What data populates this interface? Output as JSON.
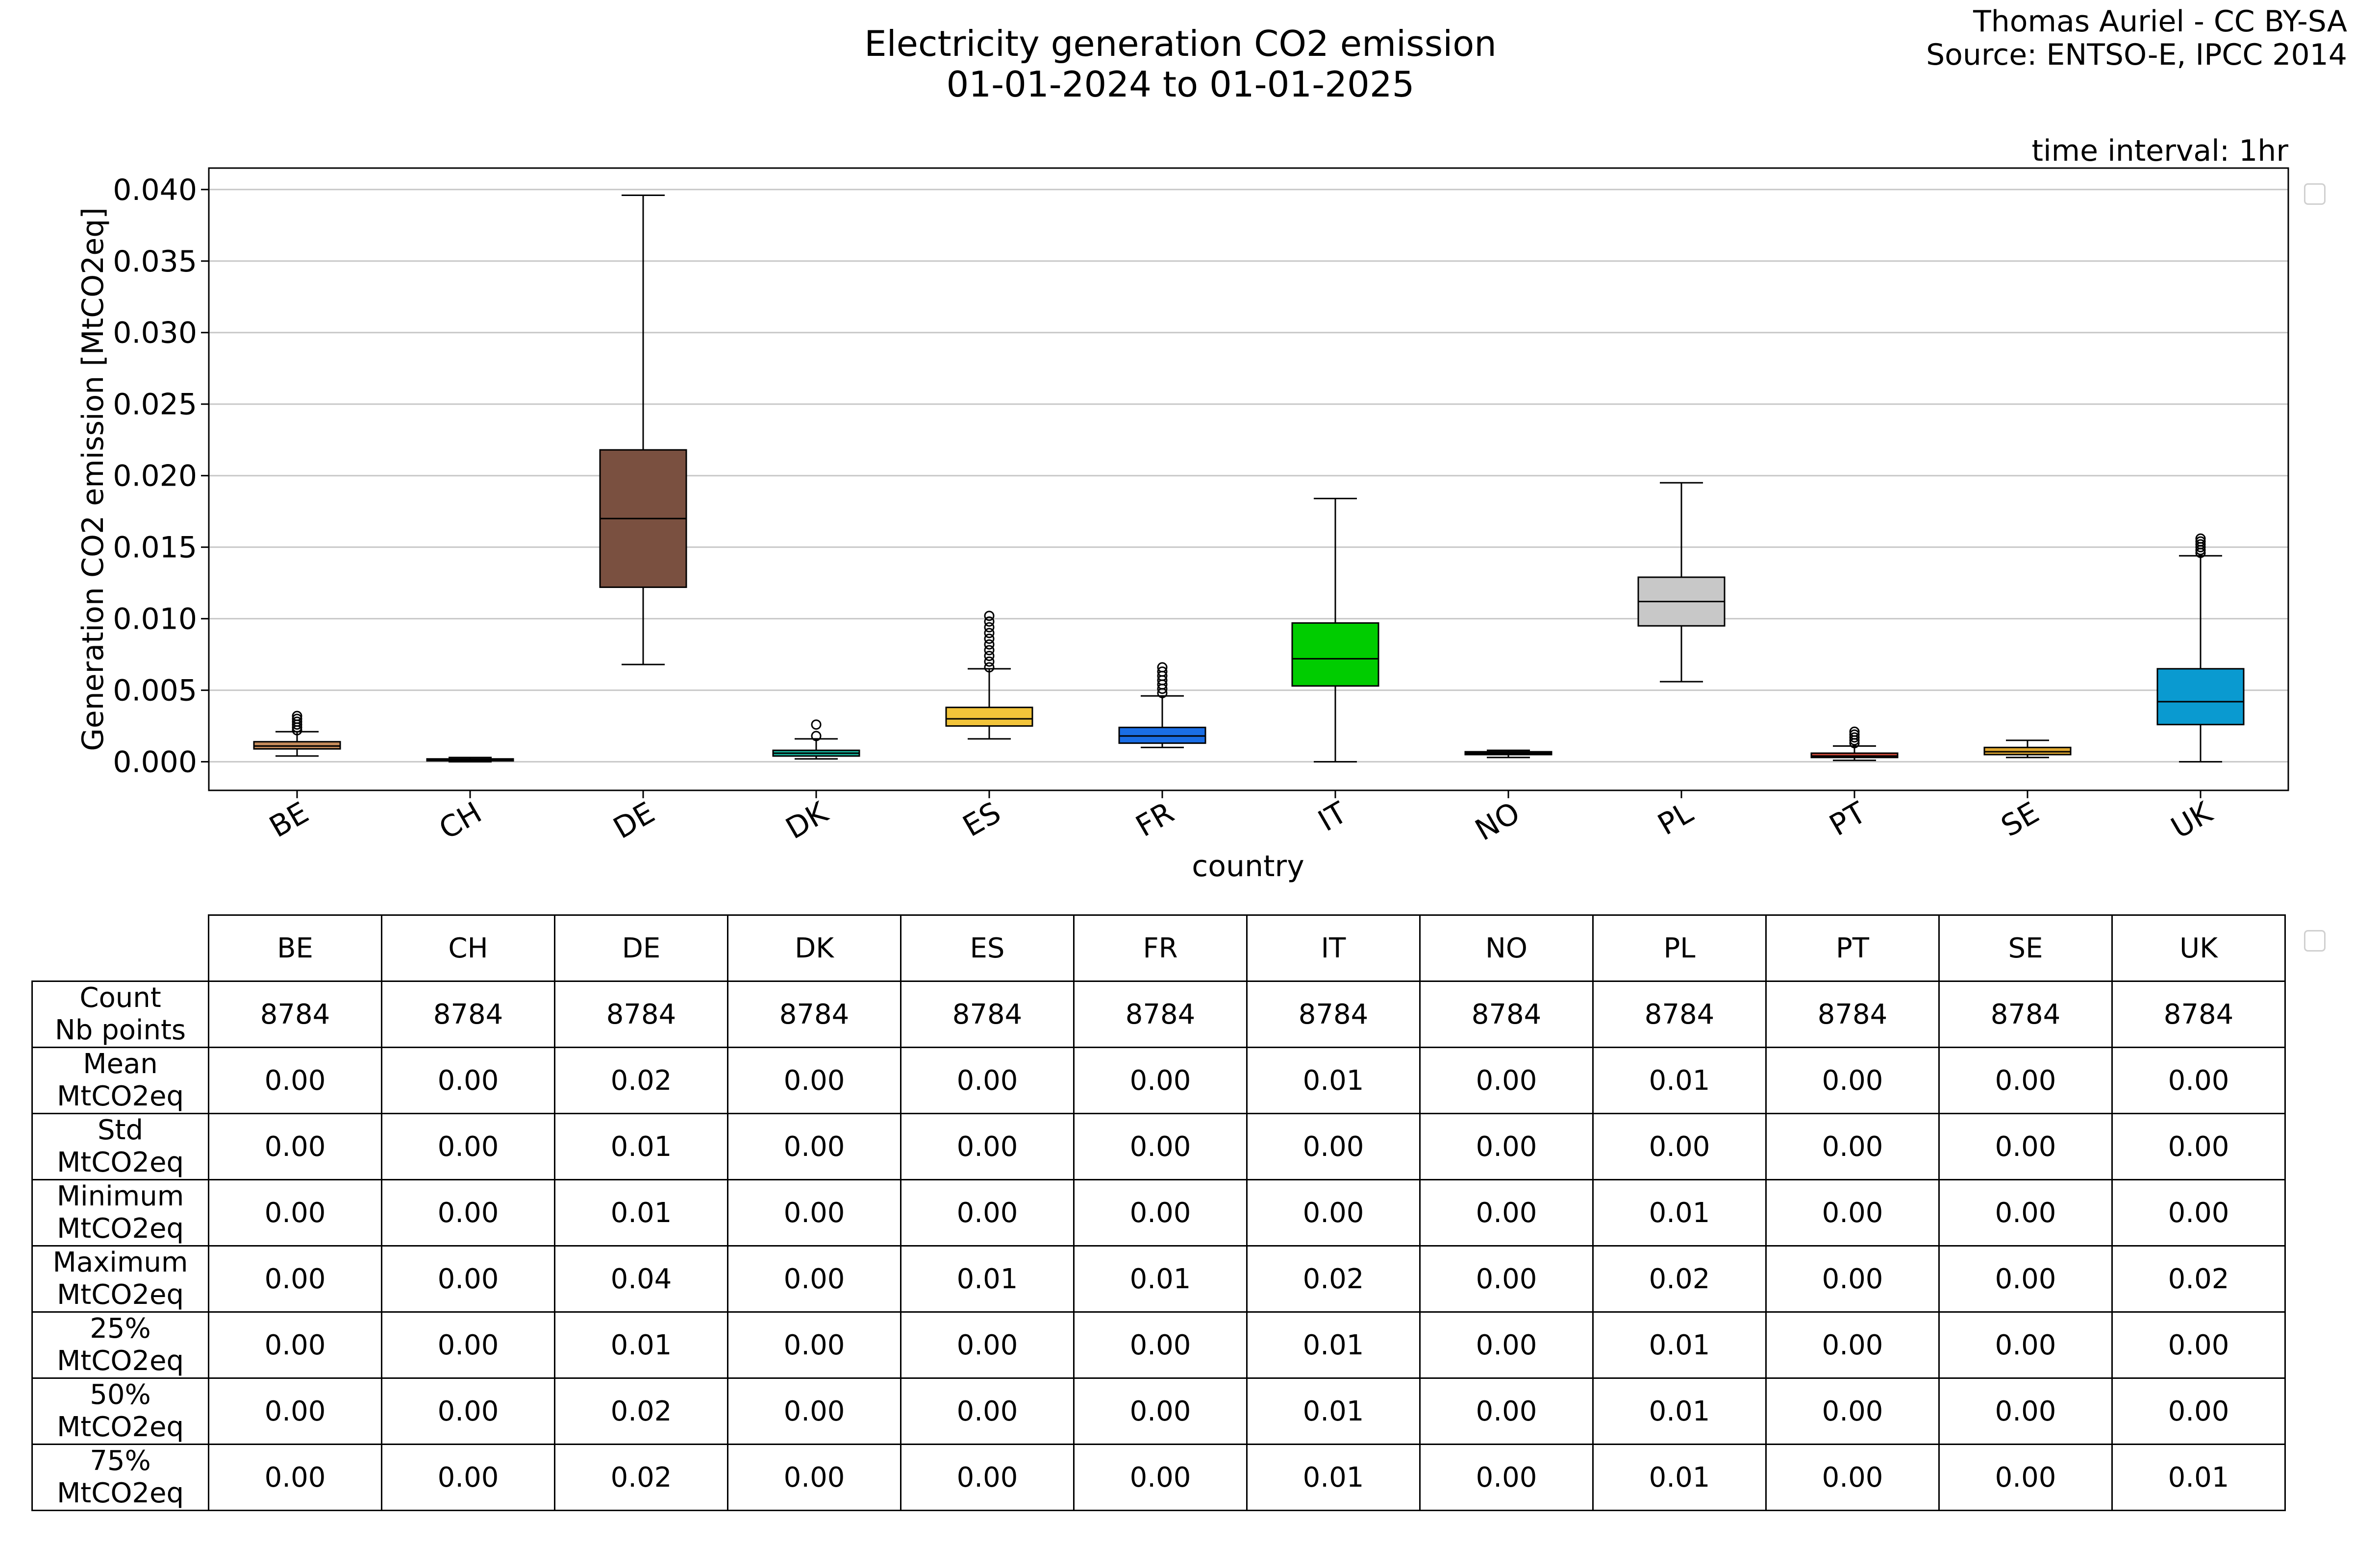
{
  "header": {
    "title_line1": "Electricity generation CO2 emission",
    "title_line2": "01-01-2024 to 01-01-2025",
    "credit_line1": "Thomas Auriel - CC BY-SA",
    "credit_line2": "Source: ENTSO-E, IPCC 2014",
    "interval": "time interval: 1hr"
  },
  "chart_data": {
    "type": "box",
    "xlabel": "country",
    "ylabel": "Generation CO2 emission [MtCO2eq]",
    "ylim": [
      -0.002,
      0.0415
    ],
    "yticks": [
      0.0,
      0.005,
      0.01,
      0.015,
      0.02,
      0.025,
      0.03,
      0.035,
      0.04
    ],
    "ytick_labels": [
      "0.000",
      "0.005",
      "0.010",
      "0.015",
      "0.020",
      "0.025",
      "0.030",
      "0.035",
      "0.040"
    ],
    "grid": "horizontal",
    "categories": [
      "BE",
      "CH",
      "DE",
      "DK",
      "ES",
      "FR",
      "IT",
      "NO",
      "PL",
      "PT",
      "SE",
      "UK"
    ],
    "boxes": [
      {
        "name": "BE",
        "color": "#c48a5a",
        "whislo": 0.0004,
        "q1": 0.0009,
        "med": 0.0011,
        "q3": 0.0014,
        "whishi": 0.0021,
        "fliers": [
          0.0022,
          0.0024,
          0.0026,
          0.0028,
          0.003,
          0.0032
        ]
      },
      {
        "name": "CH",
        "color": "#9ed8cc",
        "whislo": 0.0,
        "q1": 0.0001,
        "med": 0.00015,
        "q3": 0.0002,
        "whishi": 0.0003,
        "fliers": []
      },
      {
        "name": "DE",
        "color": "#7a5040",
        "whislo": 0.0068,
        "q1": 0.0122,
        "med": 0.017,
        "q3": 0.0218,
        "whishi": 0.0396,
        "fliers": []
      },
      {
        "name": "DK",
        "color": "#18b49c",
        "whislo": 0.0002,
        "q1": 0.0004,
        "med": 0.0006,
        "q3": 0.0008,
        "whishi": 0.0016,
        "fliers": [
          0.0018,
          0.0026
        ]
      },
      {
        "name": "ES",
        "color": "#f2c43a",
        "whislo": 0.0016,
        "q1": 0.0025,
        "med": 0.003,
        "q3": 0.0038,
        "whishi": 0.0065,
        "fliers": [
          0.0066,
          0.007,
          0.0074,
          0.0078,
          0.0082,
          0.0086,
          0.009,
          0.0094,
          0.0098,
          0.0102
        ]
      },
      {
        "name": "FR",
        "color": "#1a6ee6",
        "whislo": 0.001,
        "q1": 0.0013,
        "med": 0.0018,
        "q3": 0.0024,
        "whishi": 0.0046,
        "fliers": [
          0.0048,
          0.0051,
          0.0054,
          0.0057,
          0.006,
          0.0063,
          0.0066
        ]
      },
      {
        "name": "IT",
        "color": "#00cc00",
        "whislo": 0.0,
        "q1": 0.0053,
        "med": 0.0072,
        "q3": 0.0097,
        "whishi": 0.0184,
        "fliers": []
      },
      {
        "name": "NO",
        "color": "#555555",
        "whislo": 0.0003,
        "q1": 0.0005,
        "med": 0.0006,
        "q3": 0.0007,
        "whishi": 0.0008,
        "fliers": []
      },
      {
        "name": "PL",
        "color": "#c8c8c8",
        "whislo": 0.0056,
        "q1": 0.0095,
        "med": 0.0112,
        "q3": 0.0129,
        "whishi": 0.0195,
        "fliers": []
      },
      {
        "name": "PT",
        "color": "#d44a3a",
        "whislo": 0.0001,
        "q1": 0.0003,
        "med": 0.0004,
        "q3": 0.0006,
        "whishi": 0.0011,
        "fliers": [
          0.0013,
          0.0015,
          0.0017,
          0.0019,
          0.0021
        ]
      },
      {
        "name": "SE",
        "color": "#e0a830",
        "whislo": 0.0003,
        "q1": 0.0005,
        "med": 0.0007,
        "q3": 0.001,
        "whishi": 0.0015,
        "fliers": []
      },
      {
        "name": "UK",
        "color": "#0a9ad0",
        "whislo": 0.0,
        "q1": 0.0026,
        "med": 0.0042,
        "q3": 0.0065,
        "whishi": 0.0144,
        "fliers": [
          0.0146,
          0.0148,
          0.015,
          0.0152,
          0.0154,
          0.0156
        ]
      }
    ]
  },
  "table": {
    "columns": [
      "BE",
      "CH",
      "DE",
      "DK",
      "ES",
      "FR",
      "IT",
      "NO",
      "PL",
      "PT",
      "SE",
      "UK"
    ],
    "rows": [
      {
        "label1": "Count",
        "label2": "Nb points",
        "values": [
          "8784",
          "8784",
          "8784",
          "8784",
          "8784",
          "8784",
          "8784",
          "8784",
          "8784",
          "8784",
          "8784",
          "8784"
        ]
      },
      {
        "label1": "Mean",
        "label2": "MtCO2eq",
        "values": [
          "0.00",
          "0.00",
          "0.02",
          "0.00",
          "0.00",
          "0.00",
          "0.01",
          "0.00",
          "0.01",
          "0.00",
          "0.00",
          "0.00"
        ]
      },
      {
        "label1": "Std",
        "label2": "MtCO2eq",
        "values": [
          "0.00",
          "0.00",
          "0.01",
          "0.00",
          "0.00",
          "0.00",
          "0.00",
          "0.00",
          "0.00",
          "0.00",
          "0.00",
          "0.00"
        ]
      },
      {
        "label1": "Minimum",
        "label2": "MtCO2eq",
        "values": [
          "0.00",
          "0.00",
          "0.01",
          "0.00",
          "0.00",
          "0.00",
          "0.00",
          "0.00",
          "0.01",
          "0.00",
          "0.00",
          "0.00"
        ]
      },
      {
        "label1": "Maximum",
        "label2": "MtCO2eq",
        "values": [
          "0.00",
          "0.00",
          "0.04",
          "0.00",
          "0.01",
          "0.01",
          "0.02",
          "0.00",
          "0.02",
          "0.00",
          "0.00",
          "0.02"
        ]
      },
      {
        "label1": "25%",
        "label2": "MtCO2eq",
        "values": [
          "0.00",
          "0.00",
          "0.01",
          "0.00",
          "0.00",
          "0.00",
          "0.01",
          "0.00",
          "0.01",
          "0.00",
          "0.00",
          "0.00"
        ]
      },
      {
        "label1": "50%",
        "label2": "MtCO2eq",
        "values": [
          "0.00",
          "0.00",
          "0.02",
          "0.00",
          "0.00",
          "0.00",
          "0.01",
          "0.00",
          "0.01",
          "0.00",
          "0.00",
          "0.00"
        ]
      },
      {
        "label1": "75%",
        "label2": "MtCO2eq",
        "values": [
          "0.00",
          "0.00",
          "0.02",
          "0.00",
          "0.00",
          "0.00",
          "0.01",
          "0.00",
          "0.01",
          "0.00",
          "0.00",
          "0.01"
        ]
      }
    ]
  }
}
